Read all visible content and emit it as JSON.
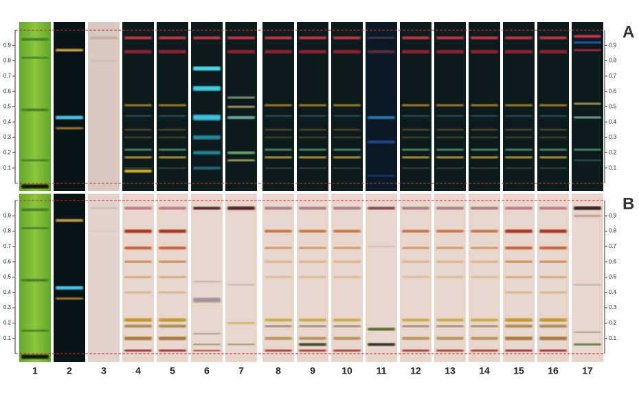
{
  "panels": [
    "A",
    "B"
  ],
  "lanes": [
    "1",
    "2",
    "3",
    "4",
    "5",
    "6",
    "7",
    "8",
    "9",
    "10",
    "11",
    "12",
    "13",
    "14",
    "15",
    "16",
    "17"
  ],
  "rf_ticks": [
    "0.9",
    "0.8",
    "0.7",
    "0.6",
    "0.5",
    "0.4",
    "0.3",
    "0.2",
    "0.1"
  ]
}
